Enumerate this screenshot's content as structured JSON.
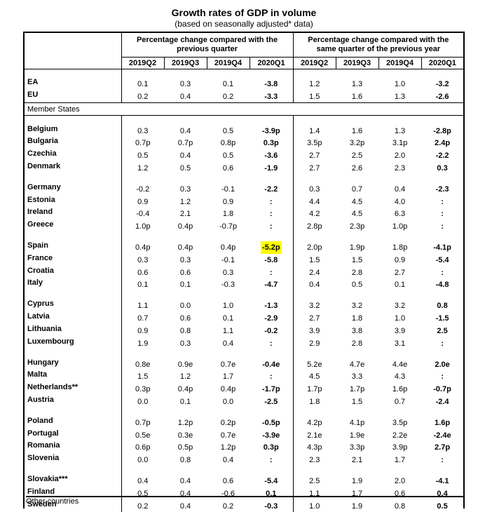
{
  "title": "Growth rates of GDP in volume",
  "subtitle": "(based on seasonally adjusted* data)",
  "header": {
    "group_qoq": "Percentage change compared with the previous quarter",
    "group_yoy": "Percentage change compared with the same quarter of the previous year",
    "quarters": [
      "2019Q2",
      "2019Q3",
      "2019Q4",
      "2020Q1",
      "2019Q2",
      "2019Q3",
      "2019Q4",
      "2020Q1"
    ]
  },
  "aggregates": [
    {
      "name": "EA",
      "values": [
        "0.1",
        "0.3",
        "0.1",
        "-3.8",
        "1.2",
        "1.3",
        "1.0",
        "-3.2"
      ]
    },
    {
      "name": "EU",
      "values": [
        "0.2",
        "0.4",
        "0.2",
        "-3.3",
        "1.5",
        "1.6",
        "1.3",
        "-2.6"
      ]
    }
  ],
  "member_states_label": "Member States",
  "groups": [
    [
      {
        "name": "Belgium",
        "values": [
          "0.3",
          "0.4",
          "0.5",
          "-3.9p",
          "1.4",
          "1.6",
          "1.3",
          "-2.8p"
        ]
      },
      {
        "name": "Bulgaria",
        "values": [
          "0.7p",
          "0.7p",
          "0.8p",
          "0.3p",
          "3.5p",
          "3.2p",
          "3.1p",
          "2.4p"
        ]
      },
      {
        "name": "Czechia",
        "values": [
          "0.5",
          "0.4",
          "0.5",
          "-3.6",
          "2.7",
          "2.5",
          "2.0",
          "-2.2"
        ]
      },
      {
        "name": "Denmark",
        "values": [
          "1.2",
          "0.5",
          "0.6",
          "-1.9",
          "2.7",
          "2.6",
          "2.3",
          "0.3"
        ]
      }
    ],
    [
      {
        "name": "Germany",
        "values": [
          "-0.2",
          "0.3",
          "-0.1",
          "-2.2",
          "0.3",
          "0.7",
          "0.4",
          "-2.3"
        ]
      },
      {
        "name": "Estonia",
        "values": [
          "0.9",
          "1.2",
          "0.9",
          ":",
          "4.4",
          "4.5",
          "4.0",
          ":"
        ]
      },
      {
        "name": "Ireland",
        "values": [
          "-0.4",
          "2.1",
          "1.8",
          ":",
          "4.2",
          "4.5",
          "6.3",
          ":"
        ]
      },
      {
        "name": "Greece",
        "values": [
          "1.0p",
          "0.4p",
          "-0.7p",
          ":",
          "2.8p",
          "2.3p",
          "1.0p",
          ":"
        ]
      }
    ],
    [
      {
        "name": "Spain",
        "values": [
          "0.4p",
          "0.4p",
          "0.4p",
          "-5.2p",
          "2.0p",
          "1.9p",
          "1.8p",
          "-4.1p"
        ],
        "highlight": 3
      },
      {
        "name": "France",
        "values": [
          "0.3",
          "0.3",
          "-0.1",
          "-5.8",
          "1.5",
          "1.5",
          "0.9",
          "-5.4"
        ]
      },
      {
        "name": "Croatia",
        "values": [
          "0.6",
          "0.6",
          "0.3",
          ":",
          "2.4",
          "2.8",
          "2.7",
          ":"
        ]
      },
      {
        "name": "Italy",
        "values": [
          "0.1",
          "0.1",
          "-0.3",
          "-4.7",
          "0.4",
          "0.5",
          "0.1",
          "-4.8"
        ]
      }
    ],
    [
      {
        "name": "Cyprus",
        "values": [
          "1.1",
          "0.0",
          "1.0",
          "-1.3",
          "3.2",
          "3.2",
          "3.2",
          "0.8"
        ]
      },
      {
        "name": "Latvia",
        "values": [
          "0.7",
          "0.6",
          "0.1",
          "-2.9",
          "2.7",
          "1.8",
          "1.0",
          "-1.5"
        ]
      },
      {
        "name": "Lithuania",
        "values": [
          "0.9",
          "0.8",
          "1.1",
          "-0.2",
          "3.9",
          "3.8",
          "3.9",
          "2.5"
        ]
      },
      {
        "name": "Luxembourg",
        "values": [
          "1.9",
          "0.3",
          "0.4",
          ":",
          "2.9",
          "2.8",
          "3.1",
          ":"
        ]
      }
    ],
    [
      {
        "name": "Hungary",
        "values": [
          "0.8e",
          "0.9e",
          "0.7e",
          "-0.4e",
          "5.2e",
          "4.7e",
          "4.4e",
          "2.0e"
        ]
      },
      {
        "name": "Malta",
        "values": [
          "1.5",
          "1.2",
          "1.7",
          ":",
          "4.5",
          "3.3",
          "4.3",
          ":"
        ]
      },
      {
        "name": "Netherlands**",
        "values": [
          "0.3p",
          "0.4p",
          "0.4p",
          "-1.7p",
          "1.7p",
          "1.7p",
          "1.6p",
          "-0.7p"
        ]
      },
      {
        "name": "Austria",
        "values": [
          "0.0",
          "0.1",
          "0.0",
          "-2.5",
          "1.8",
          "1.5",
          "0.7",
          "-2.4"
        ]
      }
    ],
    [
      {
        "name": "Poland",
        "values": [
          "0.7p",
          "1.2p",
          "0.2p",
          "-0.5p",
          "4.2p",
          "4.1p",
          "3.5p",
          "1.6p"
        ]
      },
      {
        "name": "Portugal",
        "values": [
          "0.5e",
          "0.3e",
          "0.7e",
          "-3.9e",
          "2.1e",
          "1.9e",
          "2.2e",
          "-2.4e"
        ]
      },
      {
        "name": "Romania",
        "values": [
          "0.6p",
          "0.5p",
          "1.2p",
          "0.3p",
          "4.3p",
          "3.3p",
          "3.9p",
          "2.7p"
        ]
      },
      {
        "name": "Slovenia",
        "values": [
          "0.0",
          "0.8",
          "0.4",
          ":",
          "2.3",
          "2.1",
          "1.7",
          ":"
        ]
      }
    ],
    [
      {
        "name": "Slovakia***",
        "values": [
          "0.4",
          "0.4",
          "0.6",
          "-5.4",
          "2.5",
          "1.9",
          "2.0",
          "-4.1"
        ]
      },
      {
        "name": "Finland",
        "values": [
          "0.5",
          "0.4",
          "-0.6",
          "0.1",
          "1.1",
          "1.7",
          "0.6",
          "0.4"
        ]
      },
      {
        "name": "Sweden",
        "values": [
          "0.2",
          "0.4",
          "0.2",
          "-0.3",
          "1.0",
          "1.9",
          "0.8",
          "0.5"
        ]
      }
    ]
  ],
  "other_countries_label": "Other countries",
  "colors": {
    "highlight": "#ffff00"
  }
}
